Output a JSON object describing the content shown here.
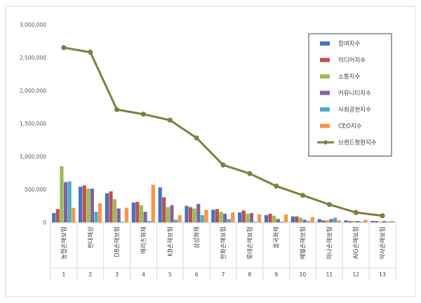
{
  "chart_data": {
    "type": "bar",
    "title": "",
    "xlabel": "",
    "ylabel": "",
    "ylim": [
      0,
      3000000
    ],
    "y_ticks": [
      "0",
      "500,000",
      "1,000,000",
      "1,500,000",
      "2,000,000",
      "2,500,000",
      "3,000,000"
    ],
    "grid": false,
    "legend_position": "top-right",
    "indices": [
      "1",
      "2",
      "3",
      "4",
      "5",
      "6",
      "7",
      "8",
      "9",
      "10",
      "11",
      "12",
      "13"
    ],
    "categories": [
      "농협손해보험",
      "현대해상",
      "DB손해보험",
      "메리츠화재",
      "KB손해보험",
      "삼성화재",
      "한화손해보험",
      "롯데손해보험",
      "흥국화재",
      "예별손해보험",
      "하나손해보험",
      "AIG손해보험",
      "악사손해보험"
    ],
    "series": [
      {
        "name": "참여지수",
        "type": "bar",
        "color": "#4472C4",
        "values": [
          140000,
          540000,
          440000,
          300000,
          530000,
          250000,
          190000,
          150000,
          110000,
          90000,
          50000,
          30000,
          20000
        ]
      },
      {
        "name": "미디어지수",
        "type": "bar",
        "color": "#C0504D",
        "values": [
          200000,
          560000,
          470000,
          310000,
          380000,
          230000,
          200000,
          180000,
          130000,
          90000,
          30000,
          20000,
          20000
        ]
      },
      {
        "name": "소통지수",
        "type": "bar",
        "color": "#9BBB59",
        "values": [
          850000,
          510000,
          350000,
          260000,
          230000,
          210000,
          160000,
          130000,
          100000,
          70000,
          30000,
          20000,
          10000
        ]
      },
      {
        "name": "커뮤니티지수",
        "type": "bar",
        "color": "#8064A2",
        "values": [
          610000,
          510000,
          210000,
          160000,
          260000,
          280000,
          130000,
          140000,
          50000,
          40000,
          50000,
          20000,
          20000
        ]
      },
      {
        "name": "사회공헌지수",
        "type": "bar",
        "color": "#4BACC6",
        "values": [
          620000,
          160000,
          10000,
          20000,
          40000,
          110000,
          50000,
          10000,
          10000,
          20000,
          70000,
          10000,
          10000
        ]
      },
      {
        "name": "CEO지수",
        "type": "bar",
        "color": "#F79646",
        "values": [
          220000,
          290000,
          220000,
          570000,
          110000,
          190000,
          150000,
          120000,
          120000,
          80000,
          30000,
          40000,
          20000
        ]
      },
      {
        "name": "브랜드평판지수",
        "type": "line",
        "color": "#7F7F3F",
        "values": [
          2650000,
          2580000,
          1710000,
          1640000,
          1550000,
          1280000,
          870000,
          740000,
          550000,
          410000,
          270000,
          150000,
          100000
        ]
      }
    ]
  }
}
